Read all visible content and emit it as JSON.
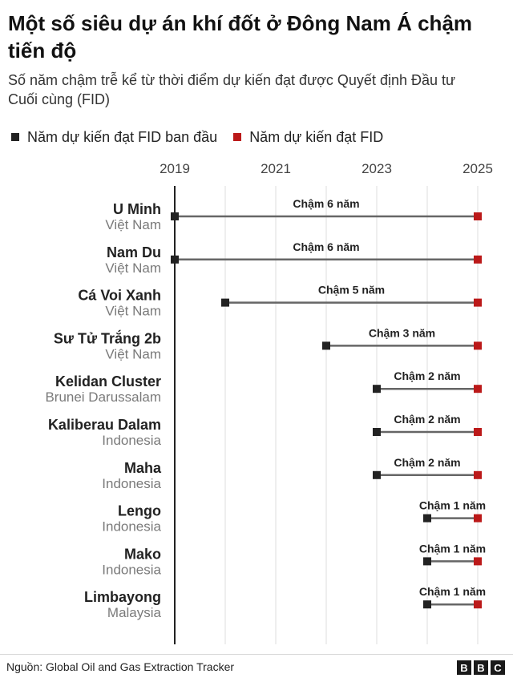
{
  "title": "Một số siêu dự án khí đốt ở Đông Nam Á chậm tiến độ",
  "subtitle": "Số năm chậm trễ kể từ thời điểm dự kiến đạt được Quyết định Đầu tư Cuối cùng (FID)",
  "legend": {
    "original": "Năm dự kiến đạt FID ban đầu",
    "revised": "Năm dự kiến đạt FID"
  },
  "colors": {
    "original": "#222222",
    "revised": "#bb1919",
    "line": "#666666",
    "grid": "#dddddd",
    "axis": "#222222"
  },
  "source": "Nguồn: Global Oil and Gas Extraction Tracker",
  "logo": [
    "B",
    "B",
    "C"
  ],
  "chart_data": {
    "type": "dumbbell",
    "x_ticks": [
      2019,
      2021,
      2023,
      2025
    ],
    "x_range": [
      2019,
      2025
    ],
    "grid": true,
    "legend_position": "top-left",
    "rows": [
      {
        "name": "U Minh",
        "country": "Việt Nam",
        "original": 2019,
        "revised": 2025,
        "label": "Chậm 6 năm"
      },
      {
        "name": "Nam Du",
        "country": "Việt Nam",
        "original": 2019,
        "revised": 2025,
        "label": "Chậm 6 năm"
      },
      {
        "name": "Cá Voi Xanh",
        "country": "Việt Nam",
        "original": 2020,
        "revised": 2025,
        "label": "Chậm 5 năm"
      },
      {
        "name": "Sư Tử Trắng 2b",
        "country": "Việt Nam",
        "original": 2022,
        "revised": 2025,
        "label": "Chậm 3 năm"
      },
      {
        "name": "Kelidan Cluster",
        "country": "Brunei Darussalam",
        "original": 2023,
        "revised": 2025,
        "label": "Chậm 2 năm"
      },
      {
        "name": "Kaliberau Dalam",
        "country": "Indonesia",
        "original": 2023,
        "revised": 2025,
        "label": "Chậm 2 năm"
      },
      {
        "name": "Maha",
        "country": "Indonesia",
        "original": 2023,
        "revised": 2025,
        "label": "Chậm 2 năm"
      },
      {
        "name": "Lengo",
        "country": "Indonesia",
        "original": 2024,
        "revised": 2025,
        "label": "Chậm 1 năm"
      },
      {
        "name": "Mako",
        "country": "Indonesia",
        "original": 2024,
        "revised": 2025,
        "label": "Chậm 1 năm"
      },
      {
        "name": "Limbayong",
        "country": "Malaysia",
        "original": 2024,
        "revised": 2025,
        "label": "Chậm 1 năm"
      }
    ]
  }
}
